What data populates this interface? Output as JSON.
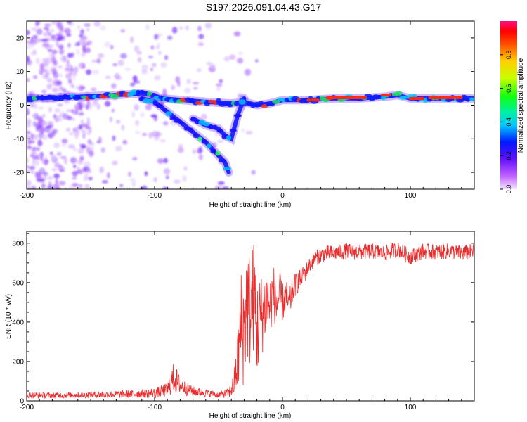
{
  "title": "S197.2026.091.04.43.G17",
  "colors": {
    "snr_line": "#ee2a2a",
    "axis": "#000000",
    "background": "#ffffff"
  },
  "chart_data": [
    {
      "type": "heatmap",
      "title": "S197.2026.091.04.43.G17",
      "xlabel": "Height of straight line (km)",
      "ylabel": "Frequency (Hz)",
      "xlim": [
        -200,
        150
      ],
      "ylim": [
        -25,
        25
      ],
      "x_ticks": [
        -200,
        -100,
        0,
        100
      ],
      "y_ticks": [
        -20,
        -10,
        0,
        10,
        20
      ],
      "colorbar": {
        "label": "Normalized spectral amplitude",
        "ticks": [
          0.0,
          0.2,
          0.4,
          0.6,
          0.8
        ],
        "tick_labels": [
          "0.0",
          "0.2",
          "0.4",
          "0.6",
          "0.8"
        ],
        "range": [
          0,
          1
        ],
        "colormap": "rainbow"
      },
      "features": [
        {
          "name": "main-tone",
          "x": [
            -200,
            -160,
            -130,
            -110,
            -100,
            -95,
            -60,
            -40,
            -30,
            -20,
            -10,
            0,
            20,
            40,
            60,
            80,
            90,
            100,
            120,
            150
          ],
          "y": [
            2,
            2.5,
            3,
            3.5,
            3,
            2,
            1,
            0.5,
            1,
            0,
            0.5,
            1.5,
            1.5,
            2,
            2,
            2.5,
            3,
            2,
            2,
            2
          ]
        },
        {
          "name": "descending-branch",
          "x": [
            -110,
            -100,
            -90,
            -80,
            -70,
            -60,
            -55,
            -50,
            -45,
            -42
          ],
          "y": [
            2,
            1,
            -2,
            -5,
            -8,
            -11,
            -13,
            -15,
            -17,
            -20
          ]
        },
        {
          "name": "secondary-branch",
          "x": [
            -70,
            -60,
            -50,
            -45,
            -40,
            -35,
            -30
          ],
          "y": [
            -4,
            -6,
            -7,
            -9,
            -10,
            -3,
            2
          ]
        }
      ]
    },
    {
      "type": "line",
      "xlabel": "Height of straight line (km)",
      "ylabel": "SNR (10 * v/v)",
      "xlim": [
        -200,
        150
      ],
      "ylim": [
        0,
        860
      ],
      "x_ticks": [
        -200,
        -100,
        0,
        100
      ],
      "y_ticks": [
        0,
        200,
        400,
        600,
        800
      ],
      "series": [
        {
          "name": "SNR",
          "x": [
            -200,
            -180,
            -160,
            -140,
            -120,
            -100,
            -90,
            -85,
            -80,
            -75,
            -70,
            -60,
            -50,
            -42,
            -38,
            -35,
            -32,
            -30,
            -28,
            -25,
            -22,
            -20,
            -18,
            -15,
            -12,
            -10,
            -7,
            -5,
            -2,
            0,
            3,
            5,
            8,
            10,
            13,
            15,
            18,
            20,
            25,
            30,
            35,
            40,
            50,
            60,
            70,
            80,
            90,
            100,
            110,
            120,
            130,
            140,
            150
          ],
          "y": [
            30,
            28,
            30,
            32,
            35,
            40,
            55,
            120,
            80,
            60,
            50,
            40,
            30,
            40,
            80,
            200,
            400,
            350,
            500,
            450,
            550,
            350,
            420,
            450,
            520,
            480,
            560,
            480,
            540,
            500,
            530,
            480,
            560,
            590,
            610,
            630,
            650,
            680,
            720,
            740,
            750,
            750,
            760,
            755,
            760,
            750,
            770,
            730,
            760,
            755,
            760,
            750,
            760
          ],
          "spread": [
            15,
            15,
            15,
            18,
            20,
            25,
            35,
            80,
            45,
            35,
            25,
            20,
            15,
            25,
            60,
            160,
            300,
            300,
            300,
            300,
            280,
            260,
            220,
            200,
            180,
            160,
            140,
            120,
            110,
            100,
            90,
            80,
            70,
            60,
            55,
            50,
            45,
            40,
            40,
            40,
            40,
            40,
            40,
            40,
            40,
            40,
            40,
            40,
            40,
            40,
            40,
            40,
            40
          ]
        }
      ]
    }
  ]
}
